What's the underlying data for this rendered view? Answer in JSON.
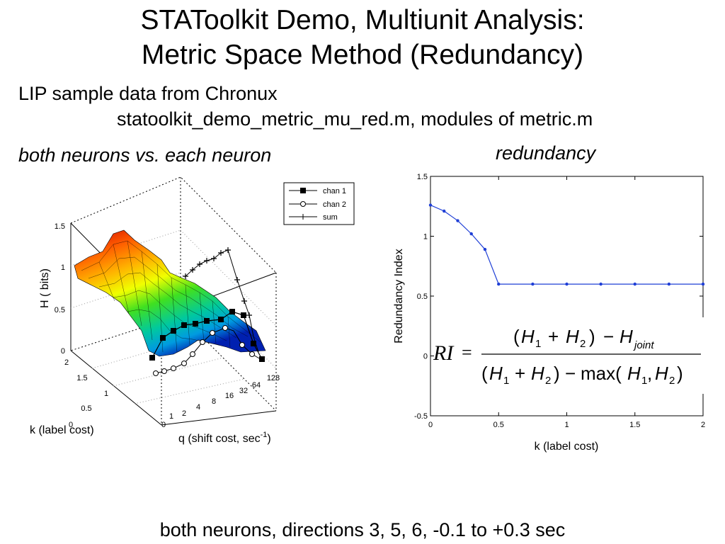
{
  "slide": {
    "title_line1": "STAToolkit Demo, Multiunit Analysis:",
    "title_line2": "Metric Space Method (Redundancy)",
    "source_line": "LIP sample data from Chronux",
    "file_line": "statoolkit_demo_metric_mu_red.m, modules of metric.m",
    "left_heading": "both neurons vs. each neuron",
    "right_heading": "redundancy",
    "footer": "both neurons, directions 3, 5, 6, -0.1 to +0.3 sec"
  },
  "left_plot": {
    "z_label": "H ( bits)",
    "z_ticks": [
      "0",
      "0.5",
      "1",
      "1.5"
    ],
    "k_label": "k (label cost)",
    "k_ticks": [
      "0",
      "0.5",
      "1",
      "1.5",
      "2"
    ],
    "q_label_main": "q (shift cost, sec",
    "q_label_sup": "-1",
    "q_label_end": ")",
    "q_ticks": [
      "0",
      "1",
      "2",
      "4",
      "8",
      "16",
      "32",
      "64",
      "128"
    ],
    "legend": [
      "chan 1",
      "chan 2",
      "sum"
    ]
  },
  "chart_data": {
    "type": "line",
    "title": "",
    "xlabel": "k (label cost)",
    "ylabel": "Redundancy Index",
    "xlim": [
      0,
      2
    ],
    "ylim": [
      -0.5,
      1.5
    ],
    "xticks": [
      "0",
      "0.5",
      "1",
      "1.5",
      "2"
    ],
    "yticks": [
      "-0.5",
      "0",
      "0.5",
      "1",
      "1.5"
    ],
    "grid": false,
    "series": [
      {
        "name": "",
        "color": "#1f3fd6",
        "x": [
          0,
          0.1,
          0.2,
          0.3,
          0.4,
          0.5,
          0.75,
          1.0,
          1.25,
          1.5,
          1.75,
          2.0
        ],
        "y": [
          1.26,
          1.21,
          1.13,
          1.02,
          0.89,
          0.6,
          0.6,
          0.6,
          0.6,
          0.6,
          0.6,
          0.6
        ]
      }
    ]
  },
  "formula": {
    "lhs": "RI",
    "num_open": "(",
    "num_h1": "H",
    "num_h1_sub": "1",
    "plus": "+",
    "num_h2": "H",
    "num_h2_sub": "2",
    "num_close": ")",
    "minus": "−",
    "num_hj": "H",
    "num_hj_sub": "joint",
    "den_max": "max(",
    "comma": ","
  }
}
